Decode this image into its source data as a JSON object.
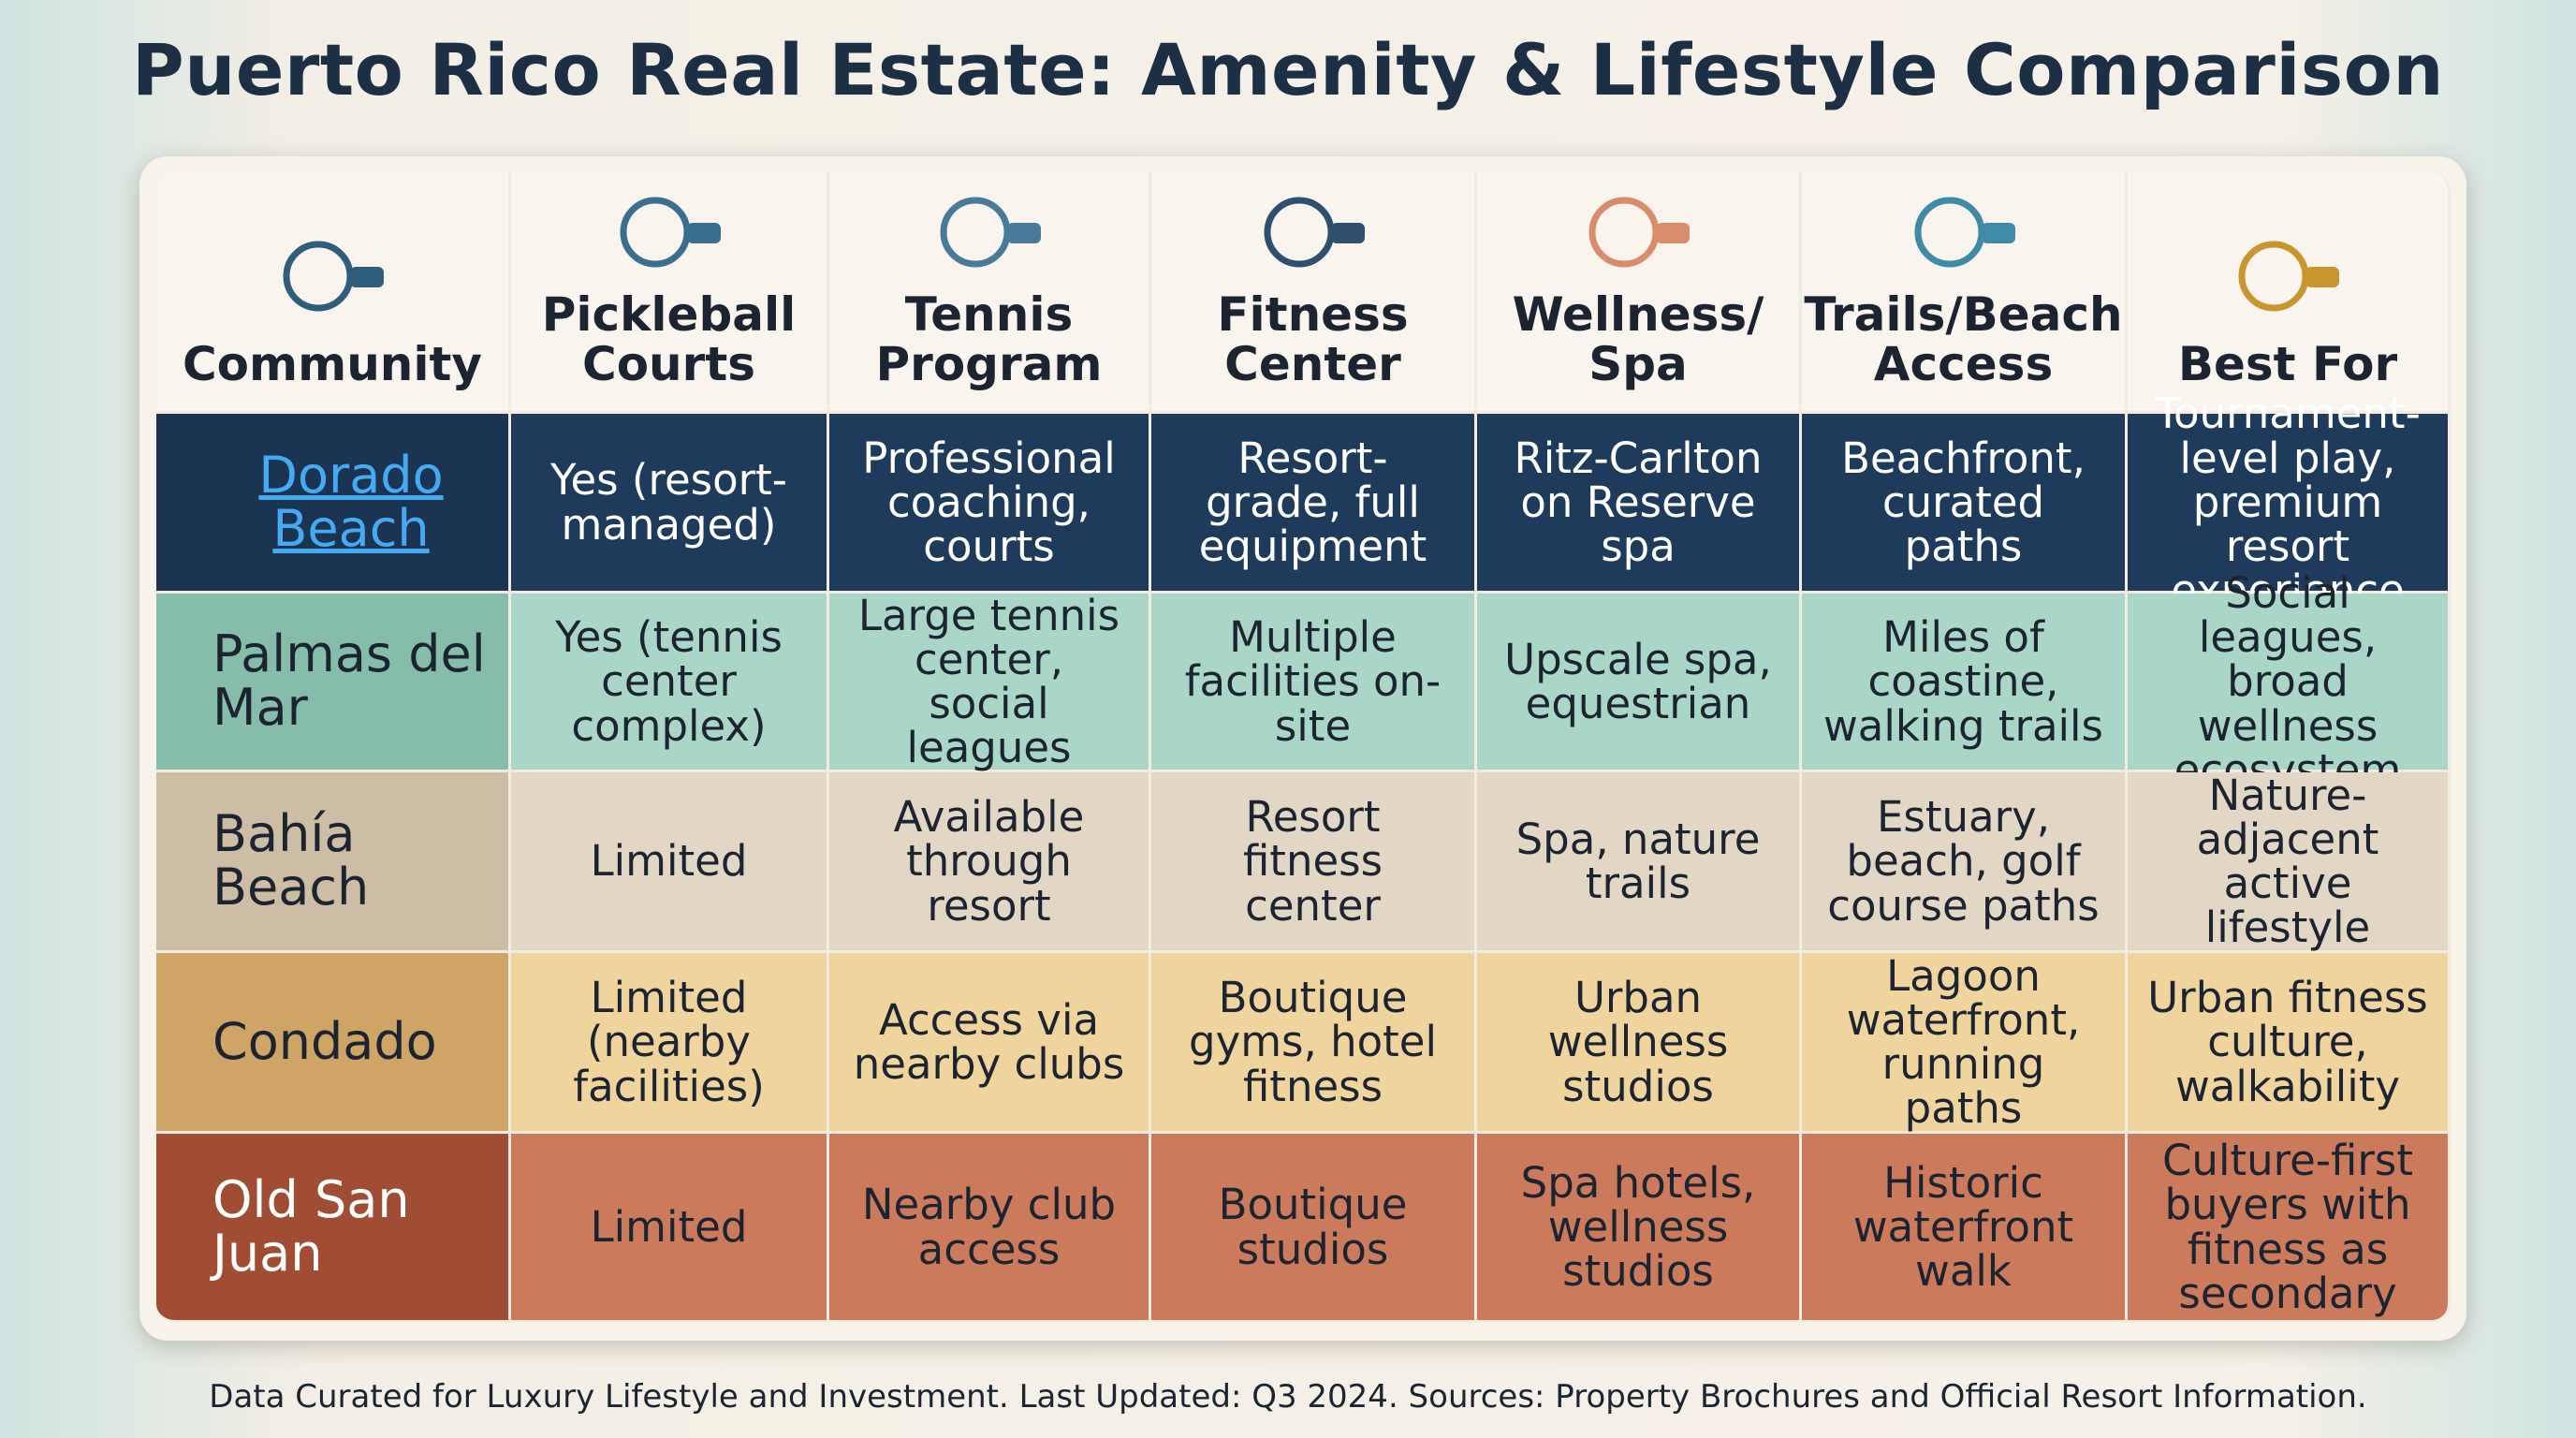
{
  "header": {
    "title": "Puerto Rico Real Estate: Amenity & Lifestyle Comparison"
  },
  "table": {
    "columns": [
      "Community",
      "Pickleball Courts",
      "Tennis Program",
      "Fitness Center",
      "Wellness/ Spa",
      "Trails/Beach Access",
      "Best For"
    ],
    "rows": [
      [
        "Dorado Beach",
        "Yes (resort-managed)",
        "Professional coaching, courts",
        "Resort-grade, full equipment",
        "Ritz-Carlton on Reserve spa",
        "Beachfront, curated paths",
        "Tournament-level play, premium resort experience"
      ],
      [
        "Palmas del Mar",
        "Yes (tennis center complex)",
        "Large tennis center, social leagues",
        "Multiple facilities on-site",
        "Upscale spa, equestrian",
        "Miles of coastine, walking trails",
        "Social leagues, broad wellness ecosystem"
      ],
      [
        "Bahía Beach",
        "Limited",
        "Available through resort",
        "Resort fitness center",
        "Spa, nature trails",
        "Estuary, beach, golf course paths",
        "Nature-adjacent active lifestyle"
      ],
      [
        "Condado",
        "Limited (nearby facilities)",
        "Access via nearby clubs",
        "Boutique gyms, hotel fitness",
        "Urban wellness studios",
        "Lagoon waterfront, running paths",
        "Urban fitness culture, walkability"
      ],
      [
        "Old San Juan",
        "Limited",
        "Nearby club access",
        "Boutique studios",
        "Spa hotels, wellness studios",
        "Historic waterfront walk",
        "Culture-first buyers with fitness as secondary"
      ]
    ]
  },
  "footer": "Data Curated for Luxury Lifestyle and Investment. Last Updated: Q3 2024. Sources: Property Brochures and Official Resort Information."
}
